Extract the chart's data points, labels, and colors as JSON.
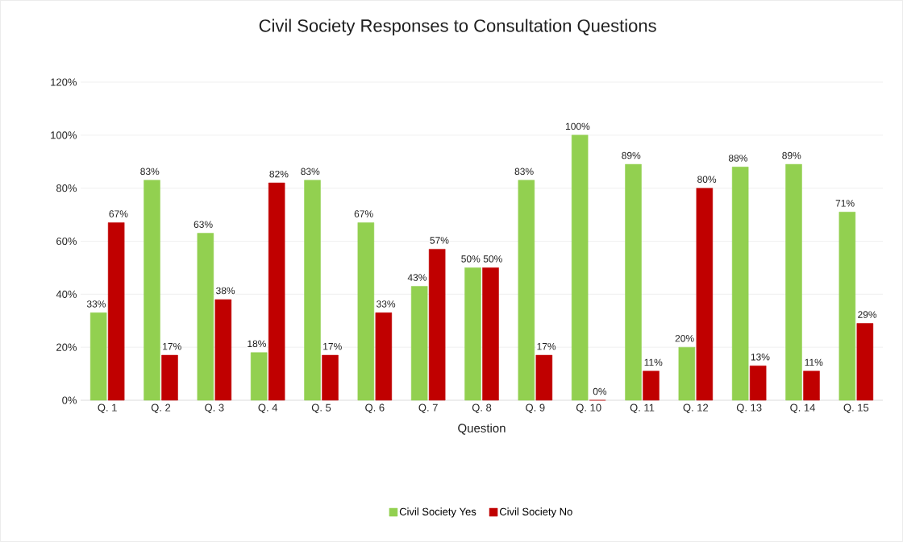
{
  "chart_data": {
    "type": "bar",
    "title": "Civil Society Responses to Consultation Questions",
    "xlabel": "Question",
    "categories": [
      "Q. 1",
      "Q. 2",
      "Q. 3",
      "Q. 4",
      "Q. 5",
      "Q. 6",
      "Q. 7",
      "Q. 8",
      "Q. 9",
      "Q. 10",
      "Q. 11",
      "Q. 12",
      "Q. 13",
      "Q. 14",
      "Q. 15"
    ],
    "series": [
      {
        "name": "Civil Society Yes",
        "color": "#92d050",
        "values": [
          33,
          83,
          63,
          18,
          83,
          67,
          43,
          50,
          83,
          100,
          89,
          20,
          88,
          89,
          71
        ],
        "value_labels": [
          "33%",
          "83%",
          "63%",
          "18%",
          "83%",
          "67%",
          "43%",
          "50%",
          "83%",
          "100%",
          "89%",
          "20%",
          "88%",
          "89%",
          "71%"
        ]
      },
      {
        "name": "Civil Society No",
        "color": "#c00000",
        "values": [
          67,
          17,
          38,
          82,
          17,
          33,
          57,
          50,
          17,
          0,
          11,
          80,
          13,
          11,
          29
        ],
        "value_labels": [
          "67%",
          "17%",
          "38%",
          "82%",
          "17%",
          "33%",
          "57%",
          "50%",
          "17%",
          "0%",
          "11%",
          "80%",
          "13%",
          "11%",
          "29%"
        ]
      }
    ],
    "ylim": [
      0,
      120
    ],
    "yticks": [
      {
        "value": 0,
        "label": "0%"
      },
      {
        "value": 20,
        "label": "20%"
      },
      {
        "value": 40,
        "label": "40%"
      },
      {
        "value": 60,
        "label": "60%"
      },
      {
        "value": 80,
        "label": "80%"
      },
      {
        "value": 100,
        "label": "100%"
      },
      {
        "value": 120,
        "label": "120%"
      }
    ],
    "grid": "y",
    "legend": "bottom"
  }
}
